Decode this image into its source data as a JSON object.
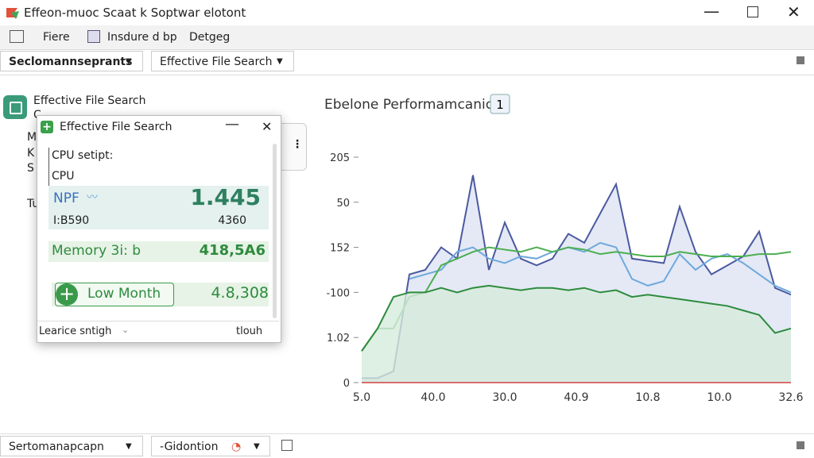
{
  "window": {
    "title": "Effeon-muoc Scaat k Soptwar elotont"
  },
  "menu": [
    "Fiere",
    "Insdure d bp",
    "Detgeg"
  ],
  "toolbar": [
    "Seclomannseprants",
    "Effective File Search"
  ],
  "left_panel": {
    "title": "Effective File Search",
    "fragments": [
      "C",
      "M",
      "K",
      "S",
      "Tu"
    ]
  },
  "popup": {
    "title": "Effective File Search",
    "section": "CPU setipt:",
    "label": "CPU",
    "metric": {
      "name": "NPF",
      "value": "1.445",
      "sub_name": "I:B590",
      "sub_value": "4360"
    },
    "memory": {
      "name": "Memory 3i: b",
      "value": "418,5A6"
    },
    "low": {
      "name": "Low Month",
      "value": "4.8,308"
    },
    "footer": {
      "left": "Learice sntigh",
      "right": "tlouh"
    }
  },
  "chart_data": {
    "type": "line",
    "title": "Ebelone Performamcanic",
    "badge": "1",
    "y_labels": [
      "205",
      "50",
      "152",
      "-100",
      "1.02",
      "0"
    ],
    "x_labels": [
      "5.0",
      "40.0",
      "30.0",
      "40.9",
      "10.8",
      "10.0",
      "32.6"
    ],
    "ylim": [
      0,
      100
    ],
    "series": [
      {
        "color": "#4b5aa0",
        "fill": "#dde3f2",
        "values": [
          2,
          2,
          5,
          48,
          50,
          60,
          55,
          92,
          50,
          71,
          55,
          52,
          55,
          66,
          62,
          75,
          88,
          55,
          54,
          53,
          78,
          58,
          48,
          52,
          56,
          67,
          42,
          39
        ]
      },
      {
        "color": "#6fa8dc",
        "values": [
          null,
          null,
          null,
          46,
          48,
          50,
          58,
          60,
          55,
          53,
          56,
          55,
          58,
          60,
          58,
          62,
          60,
          46,
          43,
          45,
          57,
          50,
          55,
          57,
          53,
          48,
          43,
          40
        ]
      },
      {
        "color": "#4caf50",
        "values": [
          14,
          24,
          24,
          38,
          40,
          52,
          55,
          58,
          60,
          59,
          58,
          60,
          58,
          60,
          59,
          57,
          58,
          57,
          56,
          56,
          58,
          57,
          56,
          56,
          56,
          57,
          57,
          58
        ]
      },
      {
        "color": "#2e8b3e",
        "fill": "#d6ebdc",
        "values": [
          14,
          24,
          38,
          40,
          40,
          42,
          40,
          42,
          43,
          42,
          41,
          42,
          42,
          41,
          42,
          40,
          41,
          38,
          39,
          38,
          37,
          36,
          35,
          34,
          32,
          30,
          22,
          24
        ]
      }
    ]
  },
  "status_bar": [
    "Sertomanapcapn",
    "-Gidontion"
  ]
}
